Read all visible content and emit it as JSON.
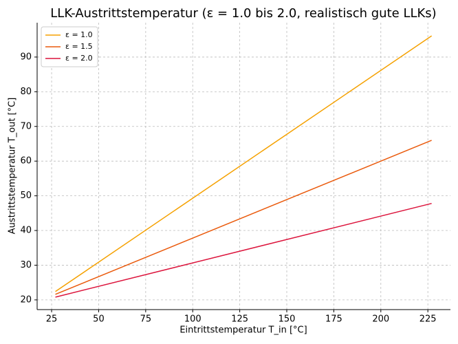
{
  "chart_data": {
    "type": "line",
    "title": "LLK-Austrittstemperatur (ε = 1.0 bis 2.0, realistisch gute LLKs)",
    "x_label": "Eintrittstemperatur T_in [°C]",
    "y_label": "Austrittstemperatur T_out [°C]",
    "x": [
      27,
      227
    ],
    "series": [
      {
        "name": "ε = 1.0",
        "color": "#f5a100",
        "values": [
          22.4,
          96.1
        ]
      },
      {
        "name": "ε = 1.5",
        "color": "#ea5a0c",
        "values": [
          21.6,
          66
        ]
      },
      {
        "name": "ε = 2.0",
        "color": "#dc143c",
        "values": [
          20.8,
          47.8
        ]
      }
    ],
    "xlim": [
      17.3,
      237
    ],
    "ylim": [
      17.2,
      99.9
    ],
    "xticks": [
      25,
      50,
      75,
      100,
      125,
      150,
      175,
      200,
      225
    ],
    "yticks": [
      20,
      30,
      40,
      50,
      60,
      70,
      80,
      90
    ],
    "grid": true,
    "legend": "upper-left"
  }
}
